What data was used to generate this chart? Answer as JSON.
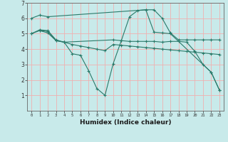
{
  "xlabel": "Humidex (Indice chaleur)",
  "ylabel": "",
  "background_color": "#c8eaea",
  "grid_color": "#f0b0b0",
  "line_color": "#2a7a6a",
  "xlim": [
    -0.5,
    23.5
  ],
  "ylim": [
    0,
    7
  ],
  "xticks": [
    0,
    1,
    2,
    3,
    4,
    5,
    6,
    7,
    8,
    9,
    10,
    11,
    12,
    13,
    14,
    15,
    16,
    17,
    18,
    19,
    20,
    21,
    22,
    23
  ],
  "yticks": [
    1,
    2,
    3,
    4,
    5,
    6,
    7
  ],
  "series": [
    {
      "x": [
        0,
        1,
        2,
        14,
        15,
        16,
        17,
        18,
        19,
        20,
        21,
        22,
        23
      ],
      "y": [
        6.0,
        6.2,
        6.1,
        6.55,
        6.55,
        6.0,
        5.05,
        4.6,
        4.6,
        4.6,
        4.6,
        4.6,
        4.6
      ]
    },
    {
      "x": [
        0,
        1,
        2,
        3,
        4,
        10,
        11,
        12,
        13,
        14,
        15,
        16,
        17,
        18,
        19,
        20,
        21,
        22,
        23
      ],
      "y": [
        5.0,
        5.25,
        5.2,
        4.6,
        4.45,
        4.6,
        4.55,
        4.5,
        4.5,
        4.5,
        4.5,
        4.45,
        4.5,
        4.5,
        4.45,
        3.85,
        3.0,
        2.5,
        1.35
      ]
    },
    {
      "x": [
        0,
        1,
        2,
        3,
        4,
        5,
        6,
        7,
        8,
        9,
        10,
        11,
        12,
        13,
        14,
        15,
        16,
        17,
        18,
        19,
        20,
        21,
        22,
        23
      ],
      "y": [
        5.0,
        5.2,
        5.05,
        4.55,
        4.45,
        4.3,
        4.2,
        4.1,
        4.0,
        3.9,
        4.3,
        4.25,
        4.2,
        4.15,
        4.1,
        4.05,
        4.0,
        3.95,
        3.9,
        3.85,
        3.8,
        3.75,
        3.7,
        3.65
      ]
    },
    {
      "x": [
        1,
        2,
        3,
        4,
        5,
        6,
        7,
        8,
        9,
        10,
        11,
        12,
        13,
        14,
        15,
        16,
        17,
        22,
        23
      ],
      "y": [
        5.2,
        5.15,
        4.55,
        4.45,
        3.7,
        3.6,
        2.6,
        1.45,
        1.0,
        3.05,
        4.55,
        6.1,
        6.5,
        6.55,
        5.1,
        5.05,
        5.0,
        2.5,
        1.35
      ]
    }
  ]
}
